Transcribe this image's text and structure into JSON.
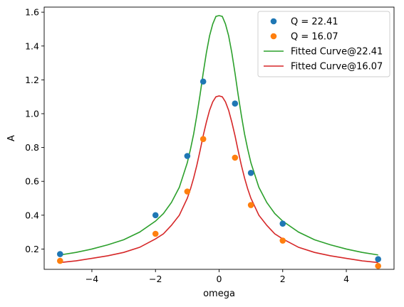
{
  "chart_data": {
    "type": "scatter",
    "title": "",
    "xlabel": "omega",
    "ylabel": "A",
    "xlim": [
      -5.5,
      5.5
    ],
    "ylim": [
      0.08,
      1.63
    ],
    "xticks": [
      -4,
      -2,
      0,
      2,
      4
    ],
    "xtick_labels": [
      "−4",
      "−2",
      "0",
      "2",
      "4"
    ],
    "yticks": [
      0.2,
      0.4,
      0.6,
      0.8,
      1.0,
      1.2,
      1.4,
      1.6
    ],
    "ytick_labels": [
      "0.2",
      "0.4",
      "0.6",
      "0.8",
      "1.0",
      "1.2",
      "1.4",
      "1.6"
    ],
    "grid": false,
    "legend_position": "top-right",
    "series": [
      {
        "name": "Q = 22.41",
        "kind": "points",
        "color": "#1f77b4",
        "x": [
          -5,
          -2,
          -1,
          -0.5,
          0.5,
          1,
          2,
          5
        ],
        "y": [
          0.17,
          0.4,
          0.75,
          1.19,
          1.06,
          0.65,
          0.35,
          0.14
        ]
      },
      {
        "name": "Q = 16.07",
        "kind": "points",
        "color": "#ff7f0e",
        "x": [
          -5,
          -2,
          -1,
          -0.5,
          0.5,
          1,
          2,
          5
        ],
        "y": [
          0.13,
          0.29,
          0.54,
          0.85,
          0.74,
          0.46,
          0.25,
          0.1
        ]
      },
      {
        "name": "Fitted Curve@22.41",
        "kind": "line",
        "color": "#2ca02c",
        "x": [
          -5,
          -4.5,
          -4,
          -3.5,
          -3,
          -2.5,
          -2,
          -1.75,
          -1.5,
          -1.25,
          -1,
          -0.9,
          -0.8,
          -0.7,
          -0.6,
          -0.5,
          -0.4,
          -0.3,
          -0.2,
          -0.1,
          0,
          0.1,
          0.2,
          0.3,
          0.4,
          0.5,
          0.6,
          0.7,
          0.8,
          0.9,
          1,
          1.25,
          1.5,
          1.75,
          2,
          2.5,
          3,
          3.5,
          4,
          4.5,
          5
        ],
        "y": [
          0.165,
          0.18,
          0.2,
          0.225,
          0.255,
          0.3,
          0.365,
          0.41,
          0.475,
          0.565,
          0.71,
          0.79,
          0.88,
          0.99,
          1.11,
          1.24,
          1.36,
          1.46,
          1.53,
          1.575,
          1.58,
          1.575,
          1.53,
          1.46,
          1.36,
          1.24,
          1.11,
          0.99,
          0.88,
          0.79,
          0.71,
          0.565,
          0.475,
          0.41,
          0.365,
          0.3,
          0.255,
          0.225,
          0.2,
          0.18,
          0.165
        ]
      },
      {
        "name": "Fitted Curve@16.07",
        "kind": "line",
        "color": "#d62728",
        "x": [
          -5,
          -4.5,
          -4,
          -3.5,
          -3,
          -2.5,
          -2,
          -1.75,
          -1.5,
          -1.25,
          -1,
          -0.9,
          -0.8,
          -0.7,
          -0.6,
          -0.5,
          -0.4,
          -0.3,
          -0.2,
          -0.1,
          0,
          0.1,
          0.2,
          0.3,
          0.4,
          0.5,
          0.6,
          0.7,
          0.8,
          0.9,
          1,
          1.25,
          1.5,
          1.75,
          2,
          2.5,
          3,
          3.5,
          4,
          4.5,
          5
        ],
        "y": [
          0.12,
          0.13,
          0.145,
          0.16,
          0.18,
          0.21,
          0.26,
          0.29,
          0.34,
          0.4,
          0.5,
          0.555,
          0.62,
          0.695,
          0.78,
          0.87,
          0.95,
          1.02,
          1.07,
          1.1,
          1.105,
          1.1,
          1.07,
          1.02,
          0.95,
          0.87,
          0.78,
          0.695,
          0.62,
          0.555,
          0.5,
          0.4,
          0.34,
          0.29,
          0.26,
          0.21,
          0.18,
          0.16,
          0.145,
          0.13,
          0.12
        ]
      }
    ]
  }
}
